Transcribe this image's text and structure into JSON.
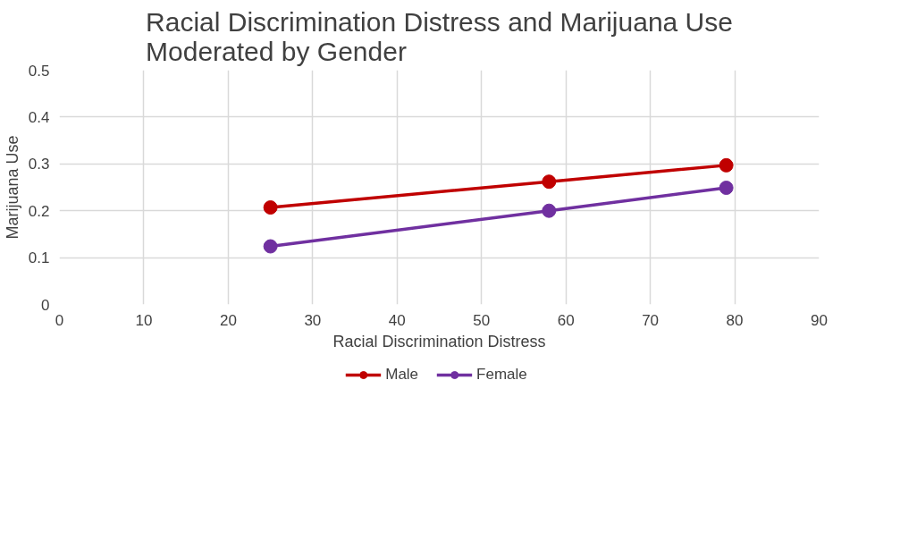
{
  "chart_data": {
    "type": "line",
    "title": "Racial Discrimination Distress and Marijuana Use\nModerated by Gender",
    "xlabel": "Racial Discrimination Distress",
    "ylabel": "Marijuana Use",
    "x": [
      25,
      58,
      79
    ],
    "series": [
      {
        "name": "Male",
        "color": "#c00000",
        "values": [
          0.207,
          0.262,
          0.297
        ]
      },
      {
        "name": "Female",
        "color": "#7030a0",
        "values": [
          0.124,
          0.2,
          0.249
        ]
      }
    ],
    "xlim": [
      0,
      90
    ],
    "xticks": [
      0,
      10,
      20,
      30,
      40,
      50,
      60,
      70,
      80,
      90
    ],
    "ylim": [
      0,
      0.5
    ],
    "yticks": [
      0,
      0.1,
      0.2,
      0.3,
      0.4,
      0.5
    ],
    "grid": true,
    "legend": "bottom",
    "marker": "circle",
    "line_style": "solid"
  }
}
